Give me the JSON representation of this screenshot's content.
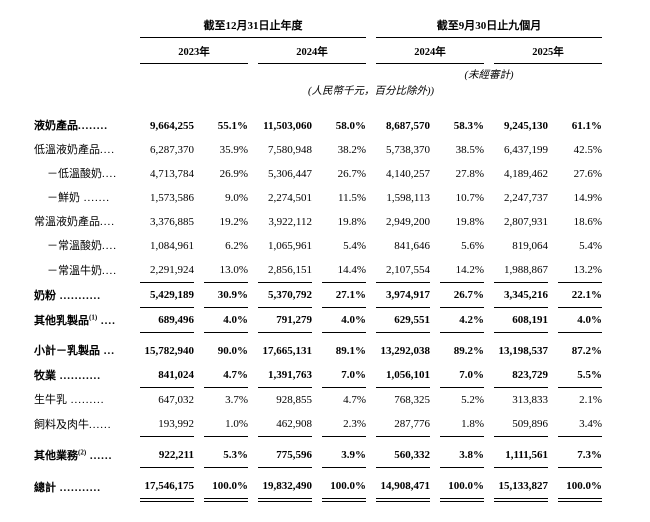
{
  "header": {
    "period_group_annual": "截至12月31日止年度",
    "period_group_nine_month": "截至9月30日止九個月",
    "years": [
      "2023年",
      "2024年",
      "2024年",
      "2025年"
    ],
    "unaudited_note": "(未經審計)",
    "currency_note": "(人民幣千元，百分比除外))"
  },
  "rows": [
    {
      "label": "液奶產品",
      "sup": "",
      "dots": "........",
      "indent": 0,
      "bold": true,
      "rule": "none",
      "gap": false,
      "cells": [
        "9,664,255",
        "55.1%",
        "11,503,060",
        "58.0%",
        "8,687,570",
        "58.3%",
        "9,245,130",
        "61.1%"
      ]
    },
    {
      "label": "低溫液奶產品",
      "sup": "",
      "dots": "....",
      "indent": 0,
      "bold": false,
      "rule": "none",
      "gap": false,
      "cells": [
        "6,287,370",
        "35.9%",
        "7,580,948",
        "38.2%",
        "5,738,370",
        "38.5%",
        "6,437,199",
        "42.5%"
      ]
    },
    {
      "label": "－低溫酸奶",
      "sup": "",
      "dots": "....",
      "indent": 1,
      "bold": false,
      "rule": "none",
      "gap": false,
      "cells": [
        "4,713,784",
        "26.9%",
        "5,306,447",
        "26.7%",
        "4,140,257",
        "27.8%",
        "4,189,462",
        "27.6%"
      ]
    },
    {
      "label": "－鮮奶",
      "sup": "",
      "dots": " .......",
      "indent": 1,
      "bold": false,
      "rule": "none",
      "gap": false,
      "cells": [
        "1,573,586",
        "9.0%",
        "2,274,501",
        "11.5%",
        "1,598,113",
        "10.7%",
        "2,247,737",
        "14.9%"
      ]
    },
    {
      "label": "常溫液奶產品",
      "sup": "",
      "dots": "....",
      "indent": 0,
      "bold": false,
      "rule": "none",
      "gap": false,
      "cells": [
        "3,376,885",
        "19.2%",
        "3,922,112",
        "19.8%",
        "2,949,200",
        "19.8%",
        "2,807,931",
        "18.6%"
      ]
    },
    {
      "label": "－常溫酸奶",
      "sup": "",
      "dots": "....",
      "indent": 1,
      "bold": false,
      "rule": "none",
      "gap": false,
      "cells": [
        "1,084,961",
        "6.2%",
        "1,065,961",
        "5.4%",
        "841,646",
        "5.6%",
        "819,064",
        "5.4%"
      ]
    },
    {
      "label": "－常溫牛奶",
      "sup": "",
      "dots": "....",
      "indent": 1,
      "bold": false,
      "rule": "single",
      "gap": false,
      "cells": [
        "2,291,924",
        "13.0%",
        "2,856,151",
        "14.4%",
        "2,107,554",
        "14.2%",
        "1,988,867",
        "13.2%"
      ]
    },
    {
      "label": "奶粉",
      "sup": "",
      "dots": " ...........",
      "indent": 0,
      "bold": true,
      "rule": "single",
      "gap": false,
      "cells": [
        "5,429,189",
        "30.9%",
        "5,370,792",
        "27.1%",
        "3,974,917",
        "26.7%",
        "3,345,216",
        "22.1%"
      ]
    },
    {
      "label": "其他乳製品",
      "sup": "(1)",
      "dots": " ....",
      "indent": 0,
      "bold": true,
      "rule": "single",
      "gap": false,
      "cells": [
        "689,496",
        "4.0%",
        "791,279",
        "4.0%",
        "629,551",
        "4.2%",
        "608,191",
        "4.0%"
      ]
    },
    {
      "label": "小計－乳製品",
      "sup": "",
      "dots": " ...",
      "indent": 0,
      "bold": true,
      "rule": "none",
      "gap": true,
      "cells": [
        "15,782,940",
        "90.0%",
        "17,665,131",
        "89.1%",
        "13,292,038",
        "89.2%",
        "13,198,537",
        "87.2%"
      ]
    },
    {
      "label": "牧業",
      "sup": "",
      "dots": " ...........",
      "indent": 0,
      "bold": true,
      "rule": "single",
      "gap": false,
      "cells": [
        "841,024",
        "4.7%",
        "1,391,763",
        "7.0%",
        "1,056,101",
        "7.0%",
        "823,729",
        "5.5%"
      ]
    },
    {
      "label": "生牛乳",
      "sup": "",
      "dots": " .........",
      "indent": 0,
      "bold": false,
      "rule": "none",
      "gap": false,
      "cells": [
        "647,032",
        "3.7%",
        "928,855",
        "4.7%",
        "768,325",
        "5.2%",
        "313,833",
        "2.1%"
      ]
    },
    {
      "label": "飼料及肉牛",
      "sup": "",
      "dots": "......",
      "indent": 0,
      "bold": false,
      "rule": "single",
      "gap": false,
      "cells": [
        "193,992",
        "1.0%",
        "462,908",
        "2.3%",
        "287,776",
        "1.8%",
        "509,896",
        "3.4%"
      ]
    },
    {
      "label": "其他業務",
      "sup": "(2)",
      "dots": " ......",
      "indent": 0,
      "bold": true,
      "rule": "single",
      "gap": true,
      "cells": [
        "922,211",
        "5.3%",
        "775,596",
        "3.9%",
        "560,332",
        "3.8%",
        "1,111,561",
        "7.3%"
      ]
    },
    {
      "label": "總計",
      "sup": "",
      "dots": " ...........",
      "indent": 0,
      "bold": true,
      "rule": "double",
      "gap": true,
      "cells": [
        "17,546,175",
        "100.0%",
        "19,832,490",
        "100.0%",
        "14,908,471",
        "100.0%",
        "15,133,827",
        "100.0%"
      ]
    }
  ]
}
